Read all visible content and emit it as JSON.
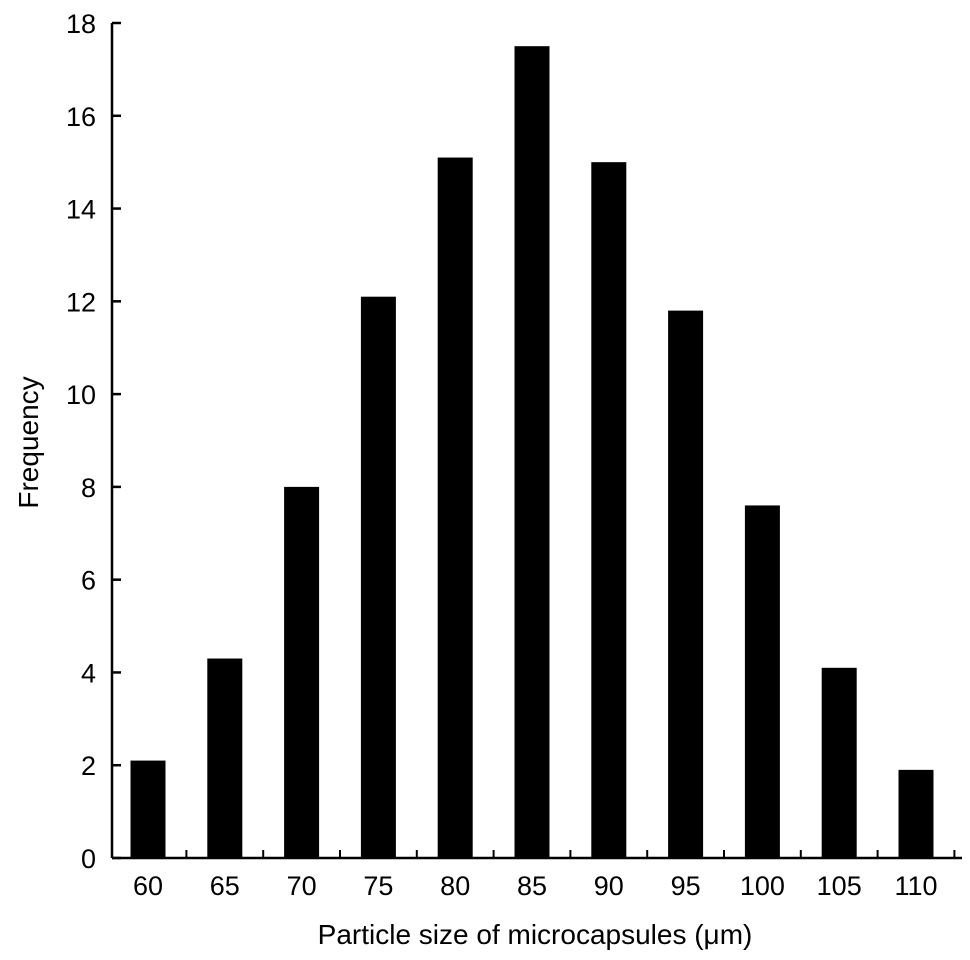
{
  "chart_data": {
    "type": "bar",
    "title": "",
    "xlabel": "Particle size of microcapsules (μm)",
    "ylabel": "Frequency",
    "categories": [
      "60",
      "65",
      "70",
      "75",
      "80",
      "85",
      "90",
      "95",
      "100",
      "105",
      "110"
    ],
    "values": [
      2.1,
      4.3,
      8.0,
      12.1,
      15.1,
      17.5,
      15.0,
      11.8,
      7.6,
      4.1,
      1.9
    ],
    "ylim": [
      0,
      18
    ],
    "yticks": [
      0,
      2,
      4,
      6,
      8,
      10,
      12,
      14,
      16,
      18
    ],
    "grid": false,
    "legend": "none",
    "bar_color": "#000000",
    "axis_color": "#000000"
  }
}
